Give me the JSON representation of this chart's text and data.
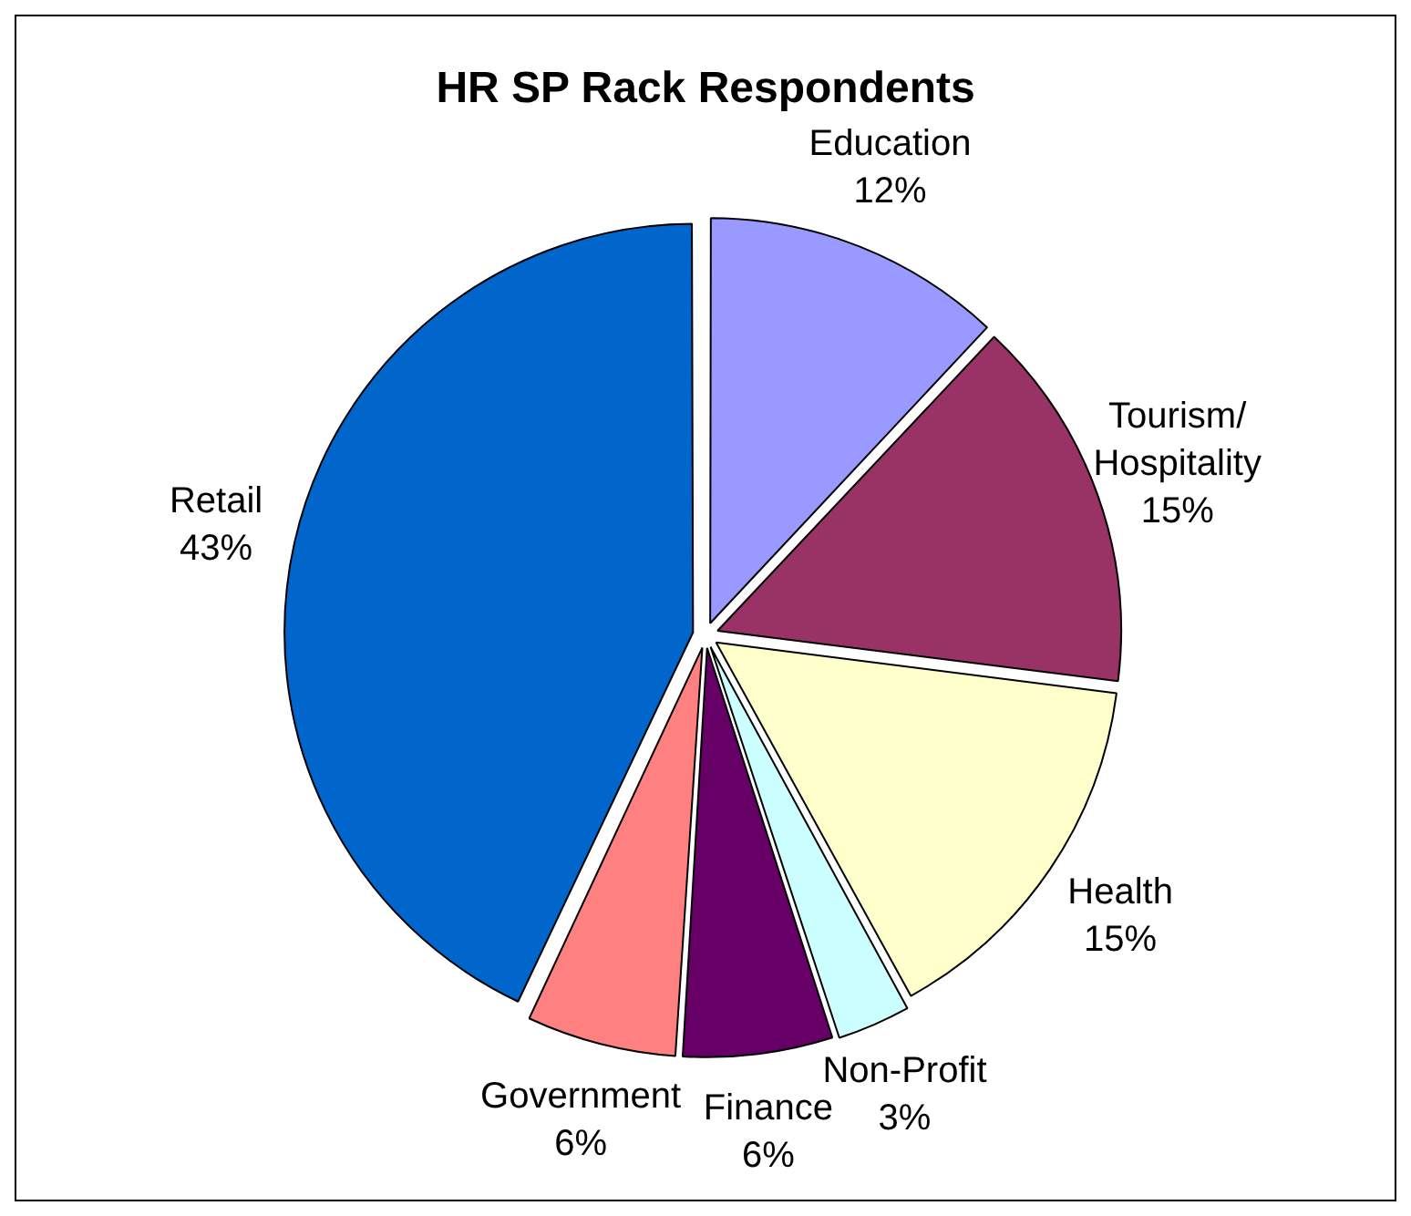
{
  "chart_data": {
    "type": "pie",
    "title": "HR SP Rack Respondents",
    "categories": [
      "Education",
      "Tourism/Hospitality",
      "Health",
      "Non-Profit",
      "Finance",
      "Government",
      "Retail"
    ],
    "values": [
      12,
      15,
      15,
      3,
      6,
      6,
      43
    ],
    "value_labels": [
      "12%",
      "15%",
      "15%",
      "3%",
      "6%",
      "6%",
      "43%"
    ],
    "colors": [
      "#9999ff",
      "#993366",
      "#ffffcc",
      "#ccffff",
      "#660066",
      "#ff8080",
      "#0066cc"
    ],
    "legend": false
  }
}
